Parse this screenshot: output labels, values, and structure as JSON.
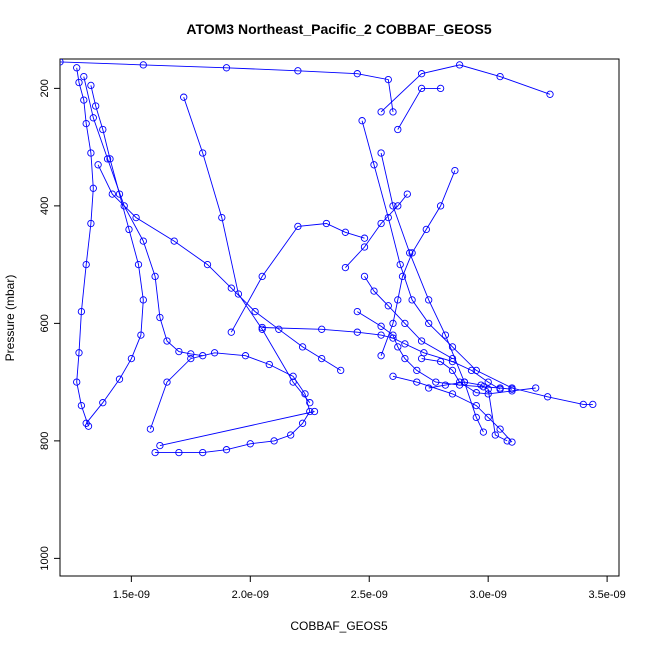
{
  "chart_data": {
    "type": "scatter",
    "title": "ATOM3 Northeast_Pacific_2 COBBAF_GEOS5",
    "xlabel": "COBBAF_GEOS5",
    "ylabel": "Pressure (mbar)",
    "x_ticks": [
      1.5e-09,
      2e-09,
      2.5e-09,
      3e-09,
      3.5e-09
    ],
    "x_tick_labels": [
      "1.5e-09",
      "2.0e-09",
      "2.5e-09",
      "3.0e-09",
      "3.5e-09"
    ],
    "y_ticks": [
      200,
      400,
      600,
      800,
      1000
    ],
    "y_tick_labels": [
      "200",
      "400",
      "600",
      "800",
      "1000"
    ],
    "xlim": [
      1.2e-09,
      3.55e-09
    ],
    "ylim": [
      1030,
      150
    ],
    "y_reversed": true,
    "grid": false,
    "color": "#0000ff",
    "series": [
      {
        "x": [
          1.27e-09,
          1.28e-09,
          1.3e-09,
          1.31e-09,
          1.33e-09,
          1.34e-09,
          1.33e-09,
          1.31e-09,
          1.29e-09,
          1.28e-09,
          1.27e-09,
          1.29e-09,
          1.32e-09
        ],
        "y": [
          165,
          190,
          220,
          260,
          310,
          370,
          430,
          500,
          580,
          650,
          700,
          740,
          775
        ]
      },
      {
        "x": [
          1.33e-09,
          1.35e-09,
          1.38e-09,
          1.41e-09,
          1.45e-09,
          1.49e-09,
          1.53e-09,
          1.55e-09,
          1.54e-09,
          1.5e-09,
          1.45e-09,
          1.38e-09,
          1.31e-09
        ],
        "y": [
          195,
          230,
          270,
          320,
          380,
          440,
          500,
          560,
          620,
          660,
          695,
          735,
          770
        ]
      },
      {
        "x": [
          1.3e-09,
          1.34e-09,
          1.4e-09,
          1.47e-09,
          1.55e-09,
          1.6e-09,
          1.62e-09,
          1.65e-09,
          1.7e-09,
          1.75e-09,
          1.8e-09
        ],
        "y": [
          180,
          250,
          320,
          400,
          460,
          520,
          590,
          630,
          648,
          652,
          655
        ]
      },
      {
        "x": [
          1.6e-09,
          1.7e-09,
          1.8e-09,
          1.9e-09,
          2e-09,
          2.1e-09,
          2.17e-09,
          2.22e-09,
          2.25e-09,
          2.23e-09,
          2.18e-09,
          2.08e-09,
          1.98e-09,
          1.85e-09,
          1.75e-09,
          1.65e-09,
          1.58e-09
        ],
        "y": [
          820,
          820,
          820,
          815,
          805,
          800,
          790,
          770,
          750,
          720,
          690,
          670,
          655,
          650,
          660,
          700,
          780
        ]
      },
      {
        "x": [
          1.62e-09,
          2.27e-09
        ],
        "y": [
          808,
          750
        ]
      },
      {
        "x": [
          1.36e-09,
          1.42e-09,
          1.52e-09,
          1.68e-09,
          1.82e-09,
          1.92e-09,
          2.02e-09,
          2.12e-09,
          2.22e-09,
          2.3e-09,
          2.38e-09
        ],
        "y": [
          330,
          380,
          420,
          460,
          500,
          540,
          580,
          610,
          640,
          660,
          680
        ]
      },
      {
        "x": [
          1.72e-09,
          1.8e-09,
          1.88e-09,
          1.95e-09,
          2.05e-09,
          2.18e-09,
          2.25e-09
        ],
        "y": [
          215,
          310,
          420,
          550,
          610,
          700,
          735
        ]
      },
      {
        "x": [
          1.92e-09,
          2.05e-09,
          2.2e-09,
          2.32e-09,
          2.4e-09,
          2.48e-09
        ],
        "y": [
          615,
          520,
          435,
          430,
          445,
          455
        ]
      },
      {
        "x": [
          1.2e-09,
          1.55e-09,
          1.9e-09,
          2.2e-09,
          2.45e-09,
          2.58e-09,
          2.6e-09
        ],
        "y": [
          155,
          160,
          165,
          170,
          175,
          185,
          240
        ]
      },
      {
        "x": [
          2.05e-09,
          2.3e-09,
          2.45e-09,
          2.55e-09,
          2.6e-09,
          2.65e-09,
          2.73e-09,
          2.85e-09,
          2.93e-09,
          3e-09,
          3.05e-09
        ],
        "y": [
          607,
          610,
          615,
          620,
          625,
          635,
          650,
          665,
          680,
          700,
          712
        ]
      },
      {
        "x": [
          2.45e-09,
          2.55e-09,
          2.6e-09,
          2.62e-09,
          2.65e-09,
          2.7e-09,
          2.78e-09,
          2.88e-09,
          2.98e-09,
          3.05e-09,
          3.1e-09
        ],
        "y": [
          580,
          605,
          620,
          640,
          660,
          680,
          700,
          705,
          708,
          710,
          712
        ]
      },
      {
        "x": [
          2.47e-09,
          2.52e-09,
          2.58e-09,
          2.63e-09,
          2.68e-09,
          2.75e-09,
          2.85e-09,
          2.95e-09,
          3.1e-09,
          3.25e-09,
          3.4e-09,
          3.44e-09
        ],
        "y": [
          255,
          330,
          420,
          500,
          560,
          600,
          640,
          680,
          710,
          725,
          738,
          738
        ]
      },
      {
        "x": [
          2.55e-09,
          2.6e-09,
          2.67e-09,
          2.75e-09,
          2.82e-09,
          2.9e-09,
          2.95e-09,
          2.98e-09
        ],
        "y": [
          310,
          400,
          480,
          560,
          620,
          700,
          760,
          785
        ]
      },
      {
        "x": [
          2.4e-09,
          2.48e-09,
          2.55e-09,
          2.62e-09,
          2.66e-09
        ],
        "y": [
          505,
          470,
          430,
          400,
          380
        ]
      },
      {
        "x": [
          2.55e-09,
          2.6e-09,
          2.62e-09,
          2.64e-09,
          2.68e-09,
          2.74e-09,
          2.8e-09,
          2.86e-09
        ],
        "y": [
          655,
          600,
          560,
          520,
          480,
          440,
          400,
          340
        ]
      },
      {
        "x": [
          2.75e-09,
          2.82e-09,
          2.9e-09,
          2.97e-09,
          3e-09,
          3.03e-09,
          3.08e-09
        ],
        "y": [
          710,
          705,
          700,
          705,
          712,
          790,
          800
        ]
      },
      {
        "x": [
          2.6e-09,
          2.7e-09,
          2.85e-09,
          2.95e-09,
          3e-09,
          3.05e-09,
          3.1e-09
        ],
        "y": [
          690,
          700,
          720,
          740,
          760,
          780,
          802
        ]
      },
      {
        "x": [
          2.55e-09,
          2.72e-09,
          2.88e-09,
          3.05e-09,
          3.26e-09
        ],
        "y": [
          240,
          175,
          160,
          180,
          210
        ]
      },
      {
        "x": [
          2.62e-09,
          2.72e-09,
          2.8e-09
        ],
        "y": [
          270,
          200,
          200
        ]
      },
      {
        "x": [
          2.72e-09,
          2.8e-09,
          2.85e-09,
          2.88e-09,
          2.95e-09,
          3e-09,
          3.1e-09,
          3.2e-09
        ],
        "y": [
          660,
          665,
          680,
          700,
          718,
          720,
          715,
          710
        ]
      },
      {
        "x": [
          2.48e-09,
          2.52e-09,
          2.58e-09,
          2.65e-09,
          2.72e-09,
          2.85e-09
        ],
        "y": [
          520,
          545,
          570,
          600,
          630,
          660
        ]
      }
    ]
  }
}
